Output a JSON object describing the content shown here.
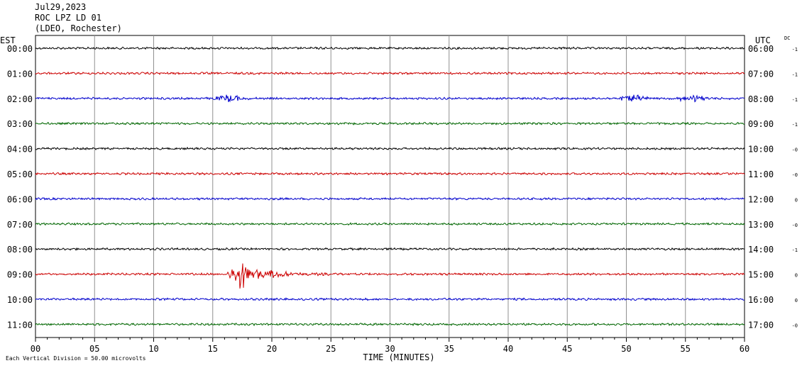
{
  "header": {
    "date": "Jul29,2023",
    "station": "ROC LPZ LD 01",
    "network": "(LDEO, Rochester)"
  },
  "chart_data": {
    "type": "line",
    "left_axis_label": "EST",
    "right_axis_label": "UTC",
    "dc_label": "DC",
    "xlabel": "TIME (MINUTES)",
    "x_ticks": [
      "00",
      "05",
      "10",
      "15",
      "20",
      "25",
      "30",
      "35",
      "40",
      "45",
      "50",
      "55",
      "60"
    ],
    "xlim": [
      0,
      60
    ],
    "grid": true,
    "footer_note": "Each Vertical Division =   50.00 microvolts",
    "trace_colors": [
      "#000000",
      "#cc0000",
      "#0000cc",
      "#006600"
    ],
    "rows": [
      {
        "est": "00:00",
        "utc": "06:00",
        "dc": "-1"
      },
      {
        "est": "01:00",
        "utc": "07:00",
        "dc": "-1"
      },
      {
        "est": "02:00",
        "utc": "08:00",
        "dc": "-1",
        "event_minutes": [
          16.5,
          50.5,
          55.5
        ]
      },
      {
        "est": "03:00",
        "utc": "09:00",
        "dc": "-1"
      },
      {
        "est": "04:00",
        "utc": "10:00",
        "dc": "-0"
      },
      {
        "est": "05:00",
        "utc": "11:00",
        "dc": "-0"
      },
      {
        "est": "06:00",
        "utc": "12:00",
        "dc": "0"
      },
      {
        "est": "07:00",
        "utc": "13:00",
        "dc": "-0"
      },
      {
        "est": "08:00",
        "utc": "14:00",
        "dc": "-1"
      },
      {
        "est": "09:00",
        "utc": "15:00",
        "dc": "0",
        "event_minutes": [
          17.3
        ]
      },
      {
        "est": "10:00",
        "utc": "16:00",
        "dc": "0"
      },
      {
        "est": "11:00",
        "utc": "17:00",
        "dc": "-0"
      }
    ]
  }
}
